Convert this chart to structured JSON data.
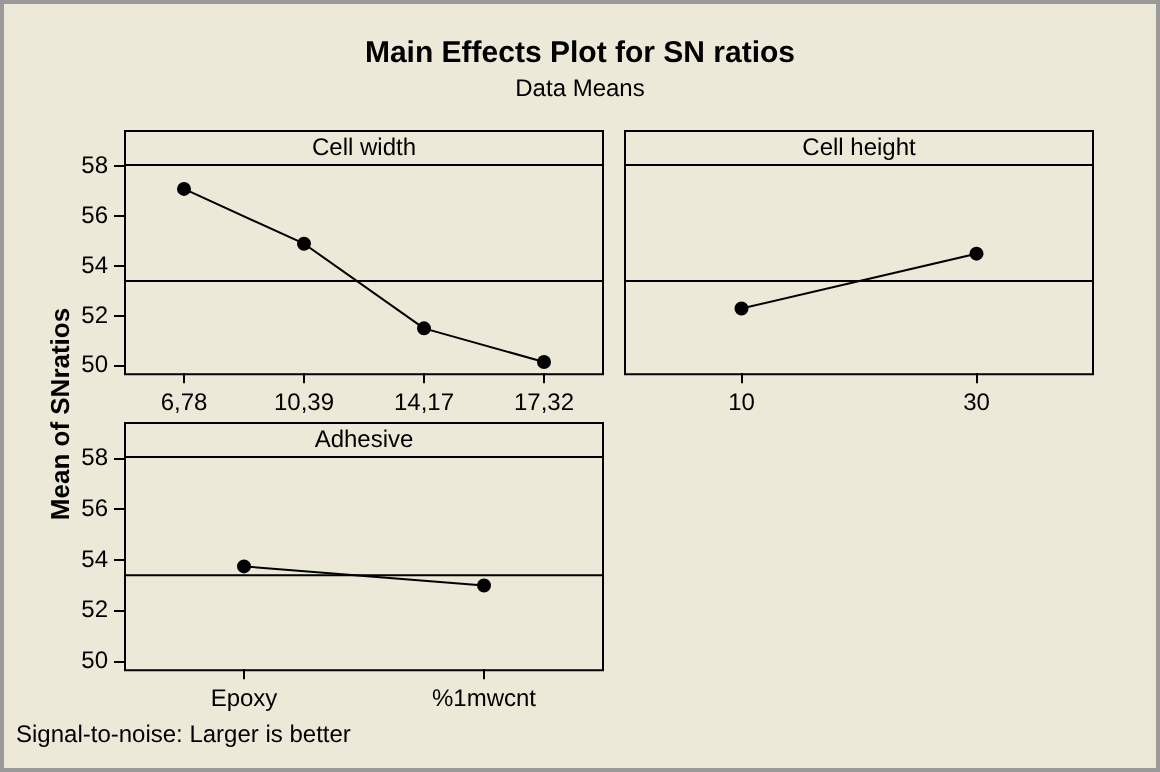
{
  "chart_data": [
    {
      "type": "line",
      "title": "Main Effects Plot for SN ratios",
      "subtitle": "Data Means",
      "ylabel": "Mean of SNratios",
      "xlabel": "Cell width",
      "categories": [
        "6,78",
        "10,39",
        "14,17",
        "17,32"
      ],
      "values": [
        57.1,
        54.9,
        51.5,
        50.15
      ],
      "color": "#000000",
      "marker": "circle",
      "ylim": [
        49.7,
        58.1
      ],
      "yticks": [
        50,
        52,
        54,
        56,
        58
      ],
      "ref_lines": [
        {
          "axis": "y",
          "value": 53.4,
          "color": "#000000"
        }
      ],
      "grid": false,
      "legend": false
    },
    {
      "type": "line",
      "xlabel": "Cell height",
      "categories": [
        "10",
        "30"
      ],
      "values": [
        52.3,
        54.5
      ],
      "color": "#000000",
      "marker": "circle",
      "ylim": [
        49.7,
        58.1
      ],
      "yticks": [
        50,
        52,
        54,
        56,
        58
      ],
      "tick_labels": "x",
      "ref_lines": [
        {
          "axis": "y",
          "value": 53.4,
          "color": "#000000"
        }
      ],
      "grid": false,
      "legend": false
    },
    {
      "type": "line",
      "xlabel": "Adhesive",
      "categories": [
        "Epoxy",
        "%1mwcnt"
      ],
      "values": [
        53.75,
        53.0
      ],
      "color": "#000000",
      "marker": "circle",
      "ylim": [
        49.7,
        58.1
      ],
      "yticks": [
        50,
        52,
        54,
        56,
        58
      ],
      "ref_lines": [
        {
          "axis": "y",
          "value": 53.4,
          "color": "#000000"
        }
      ],
      "grid": false,
      "legend": false,
      "annotations": [
        "Signal-to-noise: Larger is better"
      ]
    }
  ]
}
